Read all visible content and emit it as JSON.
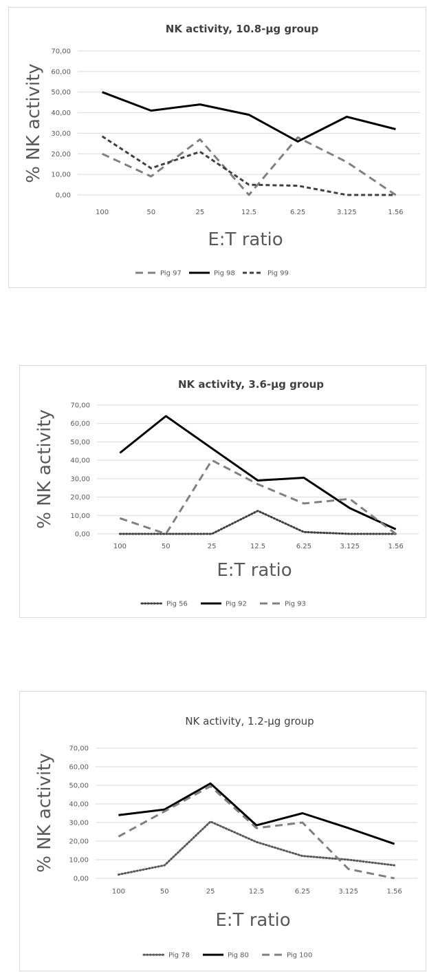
{
  "chart_data": [
    {
      "type": "line",
      "title": "NK activity, 10.8-µg group",
      "xlabel": "E:T ratio",
      "ylabel": "% NK activity",
      "categories": [
        "100",
        "50",
        "25",
        "12.5",
        "6.25",
        "3.125",
        "1.56"
      ],
      "ylim": [
        0,
        70
      ],
      "yticks": [
        "0,00",
        "10,00",
        "20,00",
        "30,00",
        "40,00",
        "50,00",
        "60,00",
        "70,00"
      ],
      "grid": true,
      "legend": "bottom",
      "series": [
        {
          "name": "Pig 97",
          "values": [
            20,
            9,
            27,
            0,
            28,
            16,
            0
          ],
          "color": "#808080",
          "style": "dash"
        },
        {
          "name": "Pig 98",
          "values": [
            50,
            41,
            44,
            39,
            26,
            38,
            32
          ],
          "color": "#000000",
          "style": "solid"
        },
        {
          "name": "Pig 99",
          "values": [
            28.5,
            13,
            21,
            5,
            4.5,
            0,
            0
          ],
          "color": "#404040",
          "style": "shortdash"
        }
      ]
    },
    {
      "type": "line",
      "title": "NK activity, 3.6-µg group",
      "xlabel": "E:T ratio",
      "ylabel": "% NK activity",
      "categories": [
        "100",
        "50",
        "25",
        "12.5",
        "6.25",
        "3.125",
        "1.56"
      ],
      "ylim": [
        0,
        70
      ],
      "yticks": [
        "0,00",
        "10,00",
        "20,00",
        "30,00",
        "40,00",
        "50,00",
        "60,00",
        "70,00"
      ],
      "grid": true,
      "legend": "bottom",
      "series": [
        {
          "name": "Pig 56",
          "values": [
            0,
            0,
            0,
            12.5,
            1,
            0,
            0
          ],
          "color": "#404040",
          "style": "dot"
        },
        {
          "name": "Pig 92",
          "values": [
            44,
            64,
            46.5,
            29,
            30.5,
            14,
            2.5
          ],
          "color": "#000000",
          "style": "solid"
        },
        {
          "name": "Pig 93",
          "values": [
            8.5,
            0,
            40,
            27,
            16.5,
            19,
            0
          ],
          "color": "#808080",
          "style": "dash"
        }
      ]
    },
    {
      "type": "line",
      "title": "NK activity, 1.2-µg group",
      "xlabel": "E:T ratio",
      "ylabel": "% NK activity",
      "categories": [
        "100",
        "50",
        "25",
        "12.5",
        "6.25",
        "3.125",
        "1.56"
      ],
      "ylim": [
        0,
        70
      ],
      "yticks": [
        "0,00",
        "10,00",
        "20,00",
        "30,00",
        "40,00",
        "50,00",
        "60,00",
        "70,00"
      ],
      "grid": true,
      "legend": "bottom",
      "series": [
        {
          "name": "Pig 78",
          "values": [
            2,
            7,
            30.5,
            19.5,
            12,
            10,
            7
          ],
          "color": "#595959",
          "style": "dot"
        },
        {
          "name": "Pig 80",
          "values": [
            34,
            37,
            51,
            28.5,
            35,
            27,
            18.5
          ],
          "color": "#000000",
          "style": "solid"
        },
        {
          "name": "Pig 100",
          "values": [
            22.5,
            36,
            49.5,
            27,
            30,
            5,
            0
          ],
          "color": "#808080",
          "style": "dash"
        }
      ]
    }
  ]
}
